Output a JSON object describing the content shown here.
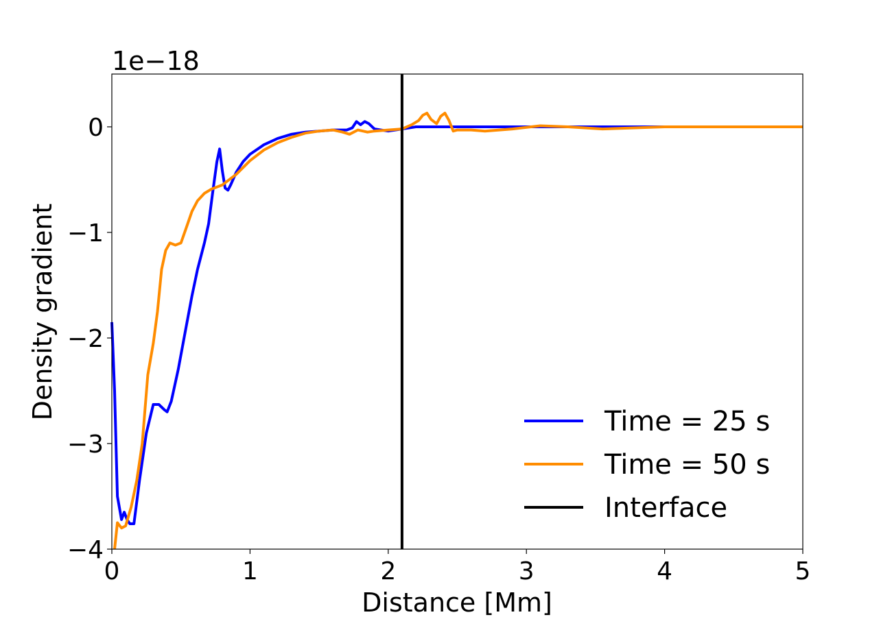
{
  "chart_data": {
    "type": "line",
    "title": "",
    "xlabel": "Distance [Mm]",
    "ylabel": "Density gradient",
    "y_offset_text": "1e−18",
    "xlim": [
      0,
      5
    ],
    "ylim": [
      -4,
      0.5
    ],
    "x_ticks": [
      0,
      1,
      2,
      3,
      4,
      5
    ],
    "x_tick_labels": [
      "0",
      "1",
      "2",
      "3",
      "4",
      "5"
    ],
    "y_ticks": [
      -4,
      -3,
      -2,
      -1,
      0
    ],
    "y_tick_labels": [
      "−4",
      "−3",
      "−2",
      "−1",
      "0"
    ],
    "grid": false,
    "legend_position": "lower-right",
    "series": [
      {
        "name": "Time = 25 s",
        "color": "#0000ff",
        "x": [
          0,
          0.02,
          0.04,
          0.07,
          0.09,
          0.11,
          0.13,
          0.16,
          0.2,
          0.25,
          0.3,
          0.34,
          0.38,
          0.4,
          0.43,
          0.48,
          0.53,
          0.58,
          0.62,
          0.67,
          0.7,
          0.73,
          0.76,
          0.78,
          0.8,
          0.82,
          0.84,
          0.86,
          0.9,
          0.95,
          1.0,
          1.1,
          1.2,
          1.3,
          1.4,
          1.5,
          1.6,
          1.7,
          1.74,
          1.77,
          1.8,
          1.83,
          1.86,
          1.9,
          2.0,
          2.1,
          2.2,
          2.5,
          3.0,
          4.0,
          5.0
        ],
        "y": [
          -1.85,
          -2.5,
          -3.5,
          -3.72,
          -3.65,
          -3.72,
          -3.76,
          -3.76,
          -3.35,
          -2.9,
          -2.63,
          -2.63,
          -2.68,
          -2.7,
          -2.6,
          -2.3,
          -1.95,
          -1.6,
          -1.35,
          -1.1,
          -0.92,
          -0.62,
          -0.33,
          -0.21,
          -0.42,
          -0.58,
          -0.6,
          -0.55,
          -0.43,
          -0.33,
          -0.26,
          -0.17,
          -0.11,
          -0.07,
          -0.05,
          -0.04,
          -0.03,
          -0.03,
          -0.01,
          0.05,
          0.02,
          0.05,
          0.03,
          -0.02,
          -0.04,
          -0.02,
          0.0,
          0.0,
          0.0,
          0.0,
          0.0
        ]
      },
      {
        "name": "Time = 50 s",
        "color": "#ff8c00",
        "x": [
          0.02,
          0.04,
          0.07,
          0.1,
          0.14,
          0.18,
          0.22,
          0.26,
          0.3,
          0.33,
          0.36,
          0.39,
          0.42,
          0.46,
          0.5,
          0.54,
          0.58,
          0.62,
          0.67,
          0.72,
          0.8,
          0.9,
          1.0,
          1.1,
          1.2,
          1.3,
          1.4,
          1.5,
          1.6,
          1.67,
          1.72,
          1.78,
          1.85,
          1.9,
          2.0,
          2.1,
          2.17,
          2.22,
          2.25,
          2.28,
          2.31,
          2.35,
          2.38,
          2.41,
          2.44,
          2.47,
          2.5,
          2.6,
          2.7,
          2.9,
          3.1,
          3.3,
          3.55,
          4.0,
          5.0
        ],
        "y": [
          -4.0,
          -3.75,
          -3.8,
          -3.78,
          -3.6,
          -3.35,
          -3.0,
          -2.35,
          -2.05,
          -1.75,
          -1.35,
          -1.17,
          -1.1,
          -1.12,
          -1.1,
          -0.95,
          -0.8,
          -0.7,
          -0.63,
          -0.59,
          -0.55,
          -0.45,
          -0.32,
          -0.22,
          -0.15,
          -0.1,
          -0.06,
          -0.04,
          -0.03,
          -0.05,
          -0.07,
          -0.03,
          -0.05,
          -0.04,
          -0.03,
          -0.02,
          0.02,
          0.06,
          0.11,
          0.13,
          0.07,
          0.03,
          0.1,
          0.13,
          0.06,
          -0.04,
          -0.03,
          -0.03,
          -0.04,
          -0.02,
          0.01,
          0.0,
          -0.02,
          0.0,
          0.0
        ]
      },
      {
        "name": "Interface",
        "color": "#000000",
        "x": [
          2.1,
          2.1
        ],
        "y": [
          -4,
          0.5
        ]
      }
    ]
  }
}
